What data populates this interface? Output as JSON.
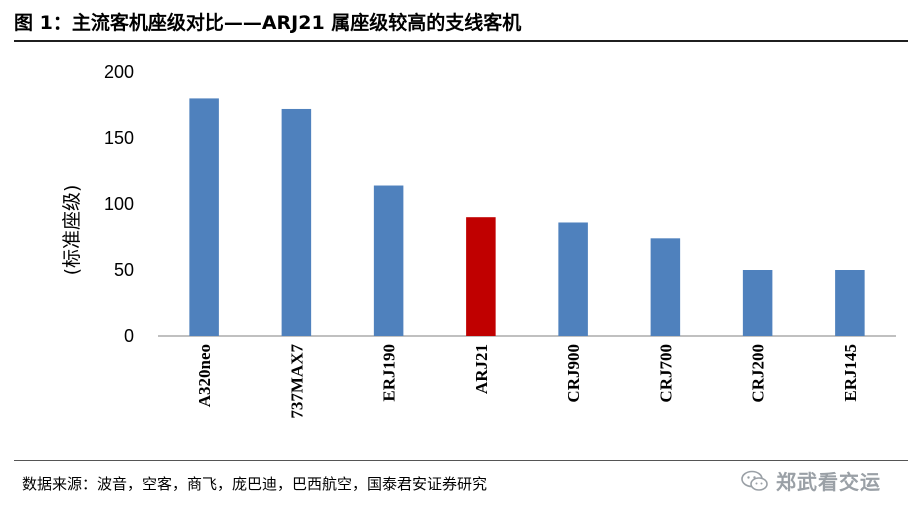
{
  "header": {
    "title": "图 1：主流客机座级对比——ARJ21 属座级较高的支线客机"
  },
  "footer": {
    "source": "数据来源：波音，空客，商飞，庞巴迪，巴西航空，国泰君安证券研究",
    "watermark": "郑武看交运"
  },
  "colors": {
    "default_bar": "#4f81bd",
    "highlight_bar": "#c00000"
  },
  "chart_data": {
    "type": "bar",
    "categories": [
      "A320neo",
      "737MAX7",
      "ERJ190",
      "ARJ21",
      "CRJ900",
      "CRJ700",
      "CRJ200",
      "ERJ145"
    ],
    "values": [
      180,
      172,
      114,
      90,
      86,
      74,
      50,
      50
    ],
    "highlight_category": "ARJ21",
    "ylabel": "(标准座级)",
    "xlabel": "",
    "ylim": [
      0,
      200
    ],
    "yticks": [
      0,
      50,
      100,
      150,
      200
    ],
    "grid": false,
    "legend": "none"
  }
}
